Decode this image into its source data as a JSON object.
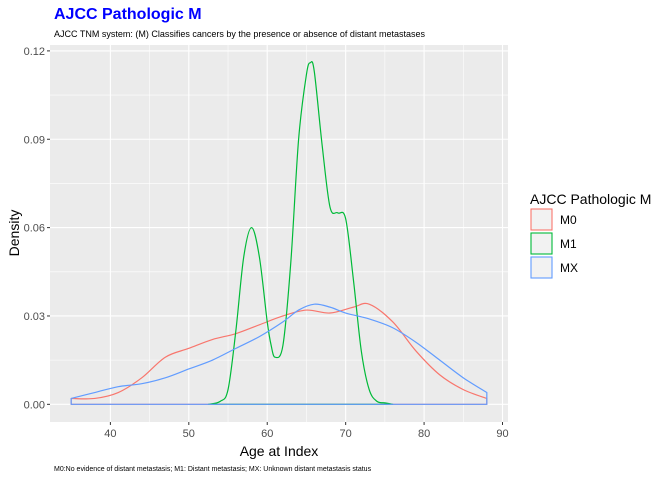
{
  "chart_data": {
    "type": "area",
    "title": "AJCC Pathologic M",
    "subtitle": "AJCC TNM system: (M) Classifies cancers by the presence or absence of distant metastases",
    "caption": "M0:No evidence of distant metastasis; M1: Distant metastasis; MX: Unknown distant metastasis status",
    "xlabel": "Age at Index",
    "ylabel": "Density",
    "xlim": [
      32.3,
      90.7
    ],
    "ylim": [
      -0.006,
      0.122
    ],
    "x_ticks": [
      40,
      50,
      60,
      70,
      80,
      90
    ],
    "x_tick_labels": [
      "40",
      "50",
      "60",
      "70",
      "80",
      "90"
    ],
    "y_ticks": [
      0,
      0.03,
      0.06,
      0.09,
      0.12
    ],
    "y_tick_labels": [
      "0.00",
      "0.03",
      "0.06",
      "0.09",
      "0.12"
    ],
    "grid": true,
    "legend": {
      "title": "AJCC Pathologic M",
      "position": "right"
    },
    "series": [
      {
        "name": "M0",
        "color": "#F8766D",
        "x": [
          35,
          38,
          41,
          44,
          47,
          50,
          53,
          56,
          59,
          62,
          65,
          68,
          71,
          73,
          76,
          79,
          82,
          85,
          88
        ],
        "y": [
          0.002,
          0.002,
          0.004,
          0.009,
          0.016,
          0.019,
          0.022,
          0.024,
          0.027,
          0.03,
          0.032,
          0.031,
          0.033,
          0.034,
          0.028,
          0.018,
          0.01,
          0.005,
          0.002
        ]
      },
      {
        "name": "M1",
        "color": "#00BA38",
        "x": [
          52.5,
          54,
          55,
          56,
          57,
          58,
          59,
          60,
          60.5,
          61,
          62,
          63,
          64,
          65,
          65.5,
          66,
          67,
          68,
          69,
          70,
          71,
          72,
          73,
          74,
          75,
          76
        ],
        "y": [
          0,
          0.001,
          0.005,
          0.025,
          0.05,
          0.06,
          0.05,
          0.028,
          0.02,
          0.016,
          0.02,
          0.048,
          0.09,
          0.112,
          0.116,
          0.113,
          0.088,
          0.067,
          0.065,
          0.063,
          0.042,
          0.018,
          0.005,
          0.001,
          0.0005,
          0
        ]
      },
      {
        "name": "MX",
        "color": "#619CFF",
        "x": [
          35,
          38,
          41,
          44,
          47,
          50,
          53,
          56,
          59,
          62,
          64,
          66,
          68,
          70,
          73,
          76,
          79,
          82,
          85,
          88
        ],
        "y": [
          0.002,
          0.004,
          0.006,
          0.007,
          0.009,
          0.012,
          0.015,
          0.019,
          0.023,
          0.028,
          0.032,
          0.034,
          0.033,
          0.031,
          0.029,
          0.026,
          0.021,
          0.015,
          0.009,
          0.004
        ]
      }
    ]
  }
}
